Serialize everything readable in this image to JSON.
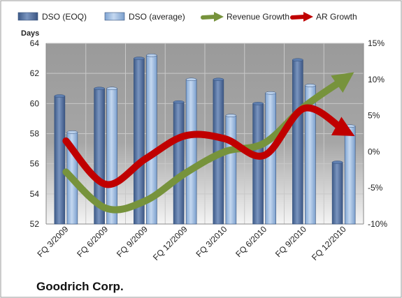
{
  "chart_data": {
    "type": "bar",
    "title": "",
    "company": "Goodrich Corp.",
    "ylabel": "Days",
    "ylim": [
      52,
      64
    ],
    "yticks": [
      52,
      54,
      56,
      58,
      60,
      62,
      64
    ],
    "y2lim": [
      -10,
      15
    ],
    "y2ticks": [
      "-10%",
      "-5%",
      "0%",
      "5%",
      "10%",
      "15%"
    ],
    "y2values": [
      -10,
      -5,
      0,
      5,
      10,
      15
    ],
    "legend_position": "top",
    "categories": [
      "FQ 3/2009",
      "FQ 6/2009",
      "FQ 9/2009",
      "FQ 12/2009",
      "FQ 3/2010",
      "FQ 6/2010",
      "FQ 9/2010",
      "FQ 12/2010"
    ],
    "series": [
      {
        "name": "DSO (EOQ)",
        "type": "bar",
        "axis": "left",
        "color": "#4a6a9a",
        "values": [
          60.5,
          61.0,
          63.0,
          60.1,
          61.6,
          60.0,
          62.9,
          56.1
        ]
      },
      {
        "name": "DSO (average)",
        "type": "bar",
        "axis": "left",
        "color": "#8fb2dc",
        "values": [
          58.1,
          61.0,
          63.2,
          61.6,
          59.2,
          60.7,
          61.2,
          58.5
        ]
      },
      {
        "name": "Revenue Growth",
        "type": "line",
        "axis": "right",
        "color": "#77933c",
        "values": [
          -2.8,
          -7.8,
          -6.8,
          -3.0,
          0.0,
          1.2,
          6.2,
          10.0
        ]
      },
      {
        "name": "AR Growth",
        "type": "line",
        "axis": "right",
        "color": "#c00000",
        "values": [
          1.5,
          -4.5,
          -1.0,
          2.2,
          1.8,
          -0.5,
          6.0,
          3.0
        ]
      }
    ],
    "grid": true
  }
}
